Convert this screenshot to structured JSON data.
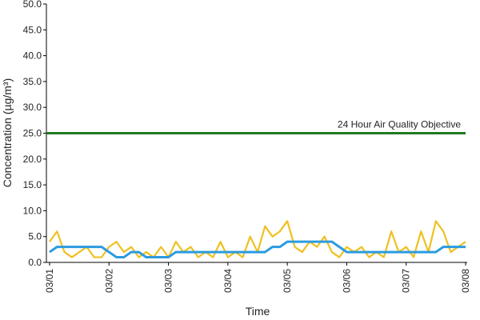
{
  "chart_data": {
    "type": "line",
    "x_label": "Time",
    "y_label": "Concentration (µg/m³)",
    "categories": [
      "03/01",
      null,
      null,
      null,
      null,
      null,
      null,
      null,
      "03/02",
      null,
      null,
      null,
      null,
      null,
      null,
      null,
      "03/03",
      null,
      null,
      null,
      null,
      null,
      null,
      null,
      "03/04",
      null,
      null,
      null,
      null,
      null,
      null,
      null,
      "03/05",
      null,
      null,
      null,
      null,
      null,
      null,
      null,
      "03/06",
      null,
      null,
      null,
      null,
      null,
      null,
      null,
      "03/07",
      null,
      null,
      null,
      null,
      null,
      null,
      null,
      "03/08"
    ],
    "series": [
      {
        "color": "#f0c020",
        "values": [
          4,
          6,
          2,
          1,
          2,
          3,
          1,
          1,
          3,
          4,
          2,
          3,
          1,
          2,
          1,
          3,
          1,
          4,
          2,
          3,
          1,
          2,
          1,
          4,
          1,
          2,
          1,
          5,
          2,
          7,
          5,
          6,
          8,
          3,
          2,
          4,
          3,
          5,
          2,
          1,
          3,
          2,
          3,
          1,
          2,
          1,
          6,
          2,
          3,
          1,
          6,
          2,
          8,
          6,
          2,
          3,
          4
        ]
      },
      {
        "color": "#2b9be0",
        "values": [
          2,
          3,
          3,
          3,
          3,
          3,
          3,
          3,
          2,
          1,
          1,
          2,
          2,
          1,
          1,
          1,
          1,
          2,
          2,
          2,
          2,
          2,
          2,
          2,
          2,
          2,
          2,
          2,
          2,
          2,
          3,
          3,
          4,
          4,
          4,
          4,
          4,
          4,
          4,
          3,
          2,
          2,
          2,
          2,
          2,
          2,
          2,
          2,
          2,
          2,
          2,
          2,
          2,
          3,
          3,
          3,
          3
        ]
      }
    ],
    "reference_line": {
      "value": 25,
      "label": "24 Hour Air Quality Objective",
      "color": "#1e7a1e"
    },
    "ylim": [
      0,
      50
    ],
    "yticks": [
      {
        "value": 0,
        "label": "0.0"
      },
      {
        "value": 5,
        "label": "5.0"
      },
      {
        "value": 10,
        "label": "10.0"
      },
      {
        "value": 15,
        "label": "15.0"
      },
      {
        "value": 20,
        "label": "20.0"
      },
      {
        "value": 25,
        "label": "25.0"
      },
      {
        "value": 30,
        "label": "30.0"
      },
      {
        "value": 35,
        "label": "35.0"
      },
      {
        "value": 40,
        "label": "40.0"
      },
      {
        "value": 45,
        "label": "45.0"
      },
      {
        "value": 50,
        "label": "50.0"
      }
    ],
    "grid": false
  }
}
